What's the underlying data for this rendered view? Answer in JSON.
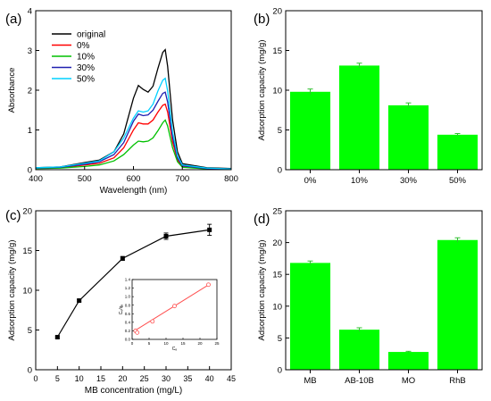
{
  "chart_data": [
    {
      "panel": "(a)",
      "type": "line",
      "xlabel": "Wavelength (nm)",
      "ylabel": "Absorbance",
      "xlim": [
        400,
        800
      ],
      "ylim": [
        0,
        4
      ],
      "xticks": [
        400,
        500,
        600,
        700,
        800
      ],
      "yticks": [
        0,
        1,
        2,
        3,
        4
      ],
      "legend_position": "top-left",
      "series": [
        {
          "name": "original",
          "color": "#000000",
          "x": [
            400,
            450,
            500,
            530,
            560,
            580,
            600,
            610,
            620,
            630,
            640,
            650,
            660,
            665,
            670,
            680,
            690,
            700,
            750,
            800
          ],
          "y": [
            0.05,
            0.07,
            0.18,
            0.24,
            0.45,
            0.9,
            1.8,
            2.12,
            2.02,
            1.95,
            2.1,
            2.55,
            2.95,
            3.02,
            2.6,
            1.25,
            0.45,
            0.15,
            0.05,
            0.03
          ]
        },
        {
          "name": "0%",
          "color": "#ff0000",
          "x": [
            400,
            450,
            500,
            530,
            560,
            580,
            600,
            610,
            620,
            630,
            640,
            650,
            660,
            665,
            670,
            680,
            690,
            700,
            750,
            800
          ],
          "y": [
            0.04,
            0.05,
            0.12,
            0.16,
            0.3,
            0.55,
            1.0,
            1.18,
            1.15,
            1.15,
            1.25,
            1.45,
            1.62,
            1.65,
            1.45,
            0.7,
            0.25,
            0.08,
            0.03,
            0.02
          ]
        },
        {
          "name": "10%",
          "color": "#00c000",
          "x": [
            400,
            450,
            500,
            530,
            560,
            580,
            600,
            610,
            620,
            630,
            640,
            650,
            660,
            665,
            670,
            680,
            690,
            700,
            750,
            800
          ],
          "y": [
            0.03,
            0.04,
            0.08,
            0.12,
            0.22,
            0.38,
            0.62,
            0.72,
            0.7,
            0.72,
            0.8,
            0.98,
            1.18,
            1.25,
            1.1,
            0.55,
            0.2,
            0.06,
            0.02,
            0.01
          ]
        },
        {
          "name": "30%",
          "color": "#2020b0",
          "x": [
            400,
            450,
            500,
            530,
            560,
            580,
            600,
            610,
            620,
            630,
            640,
            650,
            660,
            665,
            670,
            680,
            690,
            700,
            750,
            800
          ],
          "y": [
            0.04,
            0.06,
            0.14,
            0.2,
            0.38,
            0.68,
            1.22,
            1.4,
            1.36,
            1.38,
            1.5,
            1.72,
            1.92,
            1.95,
            1.7,
            0.82,
            0.3,
            0.1,
            0.03,
            0.02
          ]
        },
        {
          "name": "50%",
          "color": "#00d0ff",
          "x": [
            400,
            450,
            500,
            530,
            560,
            580,
            600,
            610,
            620,
            630,
            640,
            650,
            660,
            665,
            670,
            680,
            690,
            700,
            750,
            800
          ],
          "y": [
            0.05,
            0.07,
            0.16,
            0.22,
            0.45,
            0.8,
            1.3,
            1.48,
            1.45,
            1.48,
            1.65,
            1.98,
            2.25,
            2.3,
            1.98,
            0.95,
            0.35,
            0.12,
            0.04,
            0.02
          ]
        }
      ]
    },
    {
      "panel": "(b)",
      "type": "bar",
      "ylabel": "Adsorption capacity (mg/g)",
      "categories": [
        "0%",
        "10%",
        "30%",
        "50%"
      ],
      "values": [
        9.8,
        13.1,
        8.1,
        4.4
      ],
      "errors": [
        0.35,
        0.3,
        0.3,
        0.15
      ],
      "ylim": [
        0,
        20
      ],
      "yticks": [
        0,
        5,
        10,
        15,
        20
      ],
      "bar_color": "#00ff00"
    },
    {
      "panel": "(c)",
      "type": "line",
      "xlabel": "MB concentration (mg/L)",
      "ylabel": "Adsorption capacity (mg/g)",
      "xlim": [
        0,
        45
      ],
      "ylim": [
        0,
        20
      ],
      "xticks": [
        0,
        5,
        10,
        15,
        20,
        25,
        30,
        35,
        40,
        45
      ],
      "yticks": [
        0,
        5,
        10,
        15,
        20
      ],
      "series": [
        {
          "x": [
            5,
            10,
            20,
            30,
            40
          ],
          "y": [
            4.1,
            8.7,
            14.0,
            16.8,
            17.6
          ],
          "errors": [
            0.1,
            0.15,
            0.25,
            0.4,
            0.7
          ],
          "color": "#000000"
        }
      ],
      "inset": {
        "type": "scatter",
        "xlabel": "Cₑ",
        "ylabel": "Cₑ/qₑ",
        "xlim": [
          0,
          25
        ],
        "ylim": [
          0.0,
          1.4
        ],
        "xticks": [
          0,
          5,
          10,
          15,
          20,
          25
        ],
        "yticks": [
          0.0,
          0.2,
          0.4,
          0.6,
          0.8,
          1.0,
          1.2,
          1.4
        ],
        "points_x": [
          1.0,
          1.5,
          6.0,
          12.5,
          22.5
        ],
        "points_y": [
          0.2,
          0.16,
          0.42,
          0.78,
          1.28
        ],
        "fit_x": [
          0.5,
          23.0
        ],
        "fit_y": [
          0.19,
          1.3
        ],
        "color": "#ff5050"
      }
    },
    {
      "panel": "(d)",
      "type": "bar",
      "ylabel": "Adsorption capacity (mg/g)",
      "categories": [
        "MB",
        "AB-10B",
        "MO",
        "RhB"
      ],
      "values": [
        16.8,
        6.3,
        2.8,
        20.4
      ],
      "errors": [
        0.3,
        0.3,
        0.1,
        0.35
      ],
      "ylim": [
        0,
        25
      ],
      "yticks": [
        0,
        5,
        10,
        15,
        20,
        25
      ],
      "bar_color": "#00ff00"
    }
  ]
}
